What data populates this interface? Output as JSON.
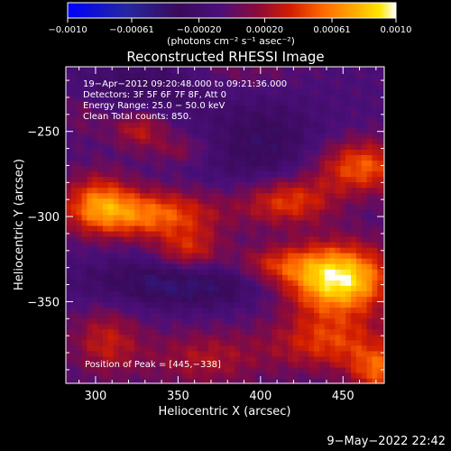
{
  "chart_data": {
    "type": "heatmap",
    "title": "Reconstructed RHESSI Image",
    "xlabel": "Heliocentric X (arcsec)",
    "ylabel": "Heliocentric Y (arcsec)",
    "xlim": [
      282,
      475
    ],
    "ylim": [
      -398,
      -212
    ],
    "xticks": [
      300,
      350,
      400,
      450
    ],
    "yticks": [
      -250,
      -300,
      -350
    ],
    "colorbar": {
      "label": "(photons cm⁻² s⁻¹ asec⁻²)",
      "range": [
        -0.001,
        0.001
      ],
      "tick_values": [
        -0.001,
        -0.00061,
        -0.0002,
        0.0002,
        0.00061,
        0.001
      ],
      "tick_labels": [
        "−0.0010",
        "−0.00061",
        "−0.00020",
        "0.00020",
        "0.00061",
        "0.0010"
      ],
      "colormap": "blue-black-purple-red-orange-yellow-white"
    },
    "annotations": [
      "19−Apr−2012 09:20:48.000 to 09:21:36.000",
      "Detectors: 3F 5F 6F 7F 8F, Att 0",
      "Energy Range: 25.0 − 50.0 keV",
      "Clean     Total counts: 850.",
      "Position of Peak = [445,−338]"
    ],
    "peak": [
      445,
      -338
    ],
    "sources": [
      {
        "x": 445,
        "y": -338,
        "sx": 22,
        "sy": 14,
        "amp": 1.0
      },
      {
        "x": 460,
        "y": -272,
        "sx": 20,
        "sy": 11,
        "amp": 0.55
      },
      {
        "x": 415,
        "y": -292,
        "sx": 20,
        "sy": 10,
        "amp": 0.5
      },
      {
        "x": 330,
        "y": -300,
        "sx": 30,
        "sy": 10,
        "amp": 0.6
      },
      {
        "x": 300,
        "y": -292,
        "sx": 14,
        "sy": 12,
        "amp": 0.45
      },
      {
        "x": 355,
        "y": -322,
        "sx": 14,
        "sy": 9,
        "amp": 0.4
      },
      {
        "x": 405,
        "y": -330,
        "sx": 18,
        "sy": 8,
        "amp": 0.35
      },
      {
        "x": 440,
        "y": -375,
        "sx": 25,
        "sy": 12,
        "amp": 0.45
      },
      {
        "x": 470,
        "y": -392,
        "sx": 12,
        "sy": 10,
        "amp": 0.5
      },
      {
        "x": 365,
        "y": -385,
        "sx": 25,
        "sy": 12,
        "amp": 0.3
      },
      {
        "x": 305,
        "y": -375,
        "sx": 15,
        "sy": 14,
        "amp": 0.35
      },
      {
        "x": 325,
        "y": -250,
        "sx": 12,
        "sy": 8,
        "amp": 0.35
      },
      {
        "x": 350,
        "y": -262,
        "sx": 12,
        "sy": 6,
        "amp": 0.2
      },
      {
        "x": 290,
        "y": -240,
        "sx": 10,
        "sy": 10,
        "amp": 0.15
      },
      {
        "x": 385,
        "y": -215,
        "sx": 25,
        "sy": 10,
        "amp": 0.15
      },
      {
        "x": 350,
        "y": -340,
        "sx": 40,
        "sy": 10,
        "amp": -0.35
      },
      {
        "x": 400,
        "y": -260,
        "sx": 25,
        "sy": 20,
        "amp": -0.25
      },
      {
        "x": 330,
        "y": -225,
        "sx": 30,
        "sy": 12,
        "amp": -0.2
      }
    ]
  },
  "footer": {
    "date": "9−May−2022 22:42"
  }
}
